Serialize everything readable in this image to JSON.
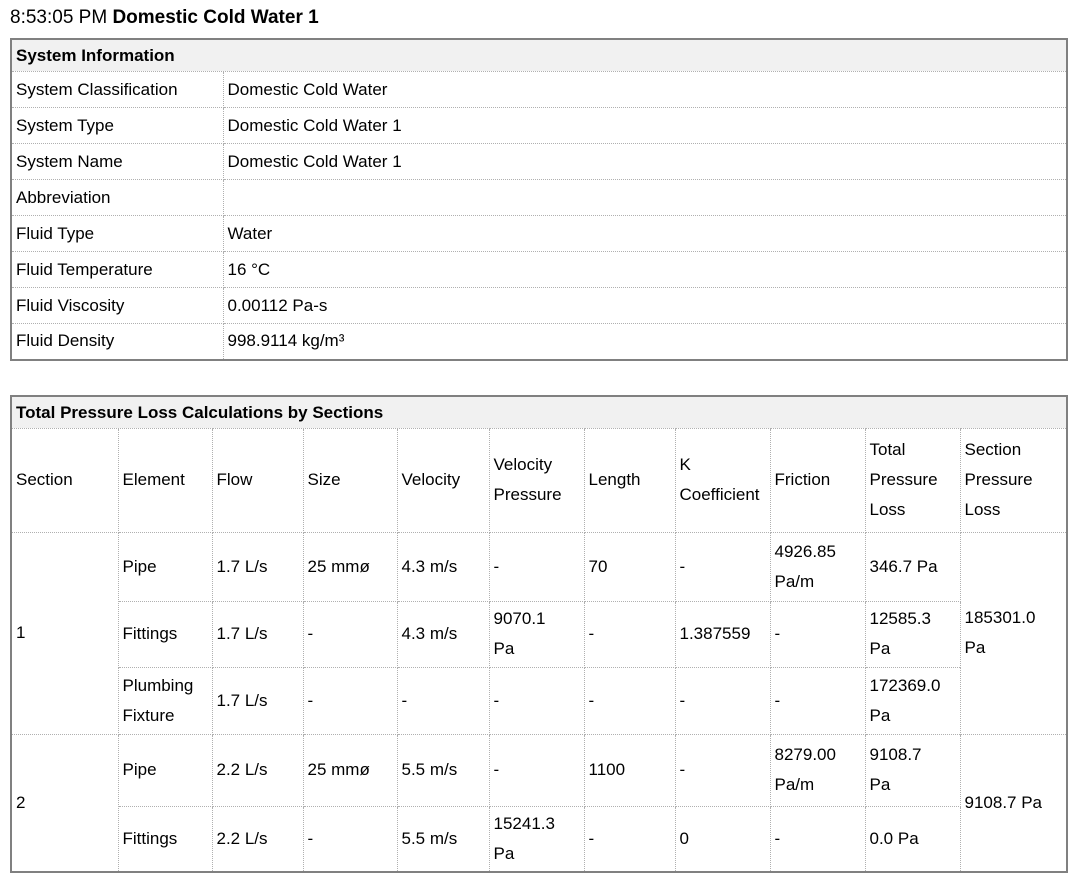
{
  "page": {
    "timestamp": "8:53:05 PM",
    "title": "Domestic Cold Water 1"
  },
  "system_information": {
    "title": "System Information",
    "rows": [
      {
        "label": "System Classification",
        "value": "Domestic Cold Water"
      },
      {
        "label": "System Type",
        "value": "Domestic Cold Water 1"
      },
      {
        "label": "System Name",
        "value": "Domestic Cold Water 1"
      },
      {
        "label": "Abbreviation",
        "value": ""
      },
      {
        "label": "Fluid Type",
        "value": "Water"
      },
      {
        "label": "Fluid Temperature",
        "value": "16 °C"
      },
      {
        "label": "Fluid Viscosity",
        "value": "0.00112 Pa-s"
      },
      {
        "label": "Fluid Density",
        "value": "998.9114 kg/m³"
      }
    ]
  },
  "pressure_loss_table": {
    "title": "Total Pressure Loss Calculations by Sections",
    "columns": [
      "Section",
      "Element",
      "Flow",
      "Size",
      "Velocity",
      "Velocity Pressure",
      "Length",
      "K Coefficient",
      "Friction",
      "Total Pressure Loss",
      "Section Pressure Loss"
    ],
    "sections": [
      {
        "section": "1",
        "section_pressure_loss": "185301.0\nPa",
        "rows": [
          {
            "element": "Pipe",
            "flow": "1.7 L/s",
            "size": "25 mmø",
            "velocity": "4.3 m/s",
            "velocity_pressure": "-",
            "length": "70",
            "k_coefficient": "-",
            "friction": "4926.85\nPa/m",
            "total_pressure_loss": "346.7 Pa"
          },
          {
            "element": "Fittings",
            "flow": "1.7 L/s",
            "size": "-",
            "velocity": "4.3 m/s",
            "velocity_pressure": "9070.1\nPa",
            "length": "-",
            "k_coefficient": "1.387559",
            "friction": "-",
            "total_pressure_loss": "12585.3\nPa"
          },
          {
            "element": "Plumbing Fixture",
            "flow": "1.7 L/s",
            "size": "-",
            "velocity": "-",
            "velocity_pressure": "-",
            "length": "-",
            "k_coefficient": "-",
            "friction": "-",
            "total_pressure_loss": "172369.0\nPa"
          }
        ]
      },
      {
        "section": "2",
        "section_pressure_loss": "9108.7 Pa",
        "rows": [
          {
            "element": "Pipe",
            "flow": "2.2 L/s",
            "size": "25 mmø",
            "velocity": "5.5 m/s",
            "velocity_pressure": "-",
            "length": "1100",
            "k_coefficient": "-",
            "friction": "8279.00\nPa/m",
            "total_pressure_loss": "9108.7\nPa"
          },
          {
            "element": "Fittings",
            "flow": "2.2 L/s",
            "size": "-",
            "velocity": "5.5 m/s",
            "velocity_pressure": "15241.3\nPa",
            "length": "-",
            "k_coefficient": "0",
            "friction": "-",
            "total_pressure_loss": "0.0 Pa"
          }
        ]
      }
    ]
  }
}
